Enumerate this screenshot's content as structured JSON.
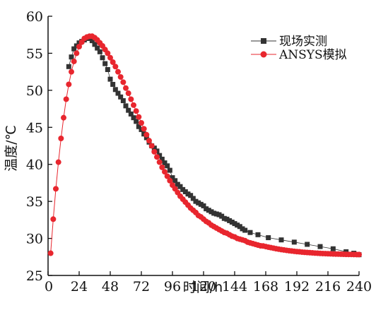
{
  "chart_data": {
    "type": "scatter",
    "xlabel": "时间/h",
    "ylabel": "温度/℃",
    "xlim": [
      0,
      240
    ],
    "ylim": [
      25,
      60
    ],
    "xticks": [
      0,
      24,
      48,
      72,
      96,
      120,
      144,
      168,
      192,
      216,
      240
    ],
    "yticks": [
      25,
      30,
      35,
      40,
      45,
      50,
      55,
      60
    ],
    "legend_position": "top-right",
    "grid": false,
    "series": [
      {
        "name": "现场实测",
        "marker": "square",
        "color": "#333333",
        "x": [
          16,
          18,
          20,
          22,
          24,
          26,
          28,
          30,
          32,
          34,
          36,
          38,
          40,
          42,
          44,
          46,
          48,
          50,
          52,
          54,
          56,
          58,
          60,
          62,
          64,
          66,
          68,
          70,
          72,
          74,
          76,
          78,
          80,
          82,
          84,
          86,
          88,
          90,
          92,
          94,
          96,
          98,
          100,
          102,
          104,
          106,
          108,
          110,
          112,
          114,
          116,
          118,
          120,
          122,
          124,
          126,
          128,
          130,
          132,
          134,
          136,
          138,
          140,
          142,
          144,
          146,
          148,
          150,
          152,
          156,
          162,
          170,
          180,
          190,
          200,
          210,
          220,
          230,
          236,
          240
        ],
        "y": [
          53.2,
          54.5,
          55.6,
          56.0,
          56.4,
          56.6,
          56.8,
          57.0,
          57.0,
          56.7,
          56.2,
          55.7,
          55.2,
          54.4,
          53.6,
          52.8,
          51.5,
          50.8,
          50.1,
          49.6,
          49.1,
          48.6,
          47.9,
          47.3,
          46.8,
          46.3,
          45.8,
          45.1,
          44.7,
          44.1,
          43.6,
          43.0,
          42.5,
          42.2,
          41.8,
          41.2,
          40.7,
          40.2,
          39.8,
          39.2,
          38.2,
          37.8,
          37.3,
          37.0,
          36.6,
          36.3,
          36.0,
          35.8,
          35.4,
          35.0,
          34.8,
          34.6,
          34.4,
          34.0,
          33.8,
          33.6,
          33.4,
          33.3,
          33.2,
          33.0,
          32.7,
          32.6,
          32.4,
          32.2,
          32.0,
          31.8,
          31.6,
          31.3,
          31.1,
          30.8,
          30.5,
          30.1,
          29.8,
          29.5,
          29.2,
          28.9,
          28.6,
          28.2,
          28.0,
          27.8
        ]
      },
      {
        "name": "ANSYS模拟",
        "marker": "circle",
        "color": "#e8262e",
        "x": [
          2,
          4,
          6,
          8,
          10,
          12,
          14,
          16,
          18,
          20,
          22,
          24,
          26,
          28,
          30,
          32,
          34,
          36,
          38,
          40,
          42,
          44,
          46,
          48,
          50,
          52,
          54,
          56,
          58,
          60,
          62,
          64,
          66,
          68,
          70,
          72,
          74,
          76,
          78,
          80,
          82,
          84,
          86,
          88,
          90,
          92,
          94,
          96,
          98,
          100,
          102,
          104,
          106,
          108,
          110,
          112,
          114,
          116,
          118,
          120,
          122,
          124,
          126,
          128,
          130,
          132,
          134,
          136,
          138,
          140,
          142,
          144,
          146,
          148,
          150,
          152,
          154,
          156,
          158,
          160,
          162,
          164,
          166,
          168,
          170,
          172,
          174,
          176,
          178,
          180,
          182,
          184,
          186,
          188,
          190,
          192,
          194,
          196,
          198,
          200,
          202,
          204,
          206,
          208,
          210,
          212,
          214,
          216,
          218,
          220,
          222,
          224,
          226,
          228,
          230,
          232,
          234,
          236,
          238,
          240
        ],
        "y": [
          28.0,
          32.6,
          36.7,
          40.3,
          43.5,
          46.3,
          48.8,
          50.8,
          52.5,
          53.9,
          55.0,
          55.9,
          56.5,
          57.0,
          57.2,
          57.3,
          57.3,
          57.1,
          56.8,
          56.4,
          56.0,
          55.5,
          55.0,
          54.4,
          53.8,
          53.2,
          52.5,
          51.8,
          51.1,
          50.3,
          49.6,
          48.8,
          48.0,
          47.2,
          46.4,
          45.6,
          44.8,
          44.0,
          43.2,
          42.5,
          41.7,
          41.0,
          40.3,
          39.6,
          39.0,
          38.4,
          37.8,
          37.2,
          36.7,
          36.2,
          35.7,
          35.3,
          34.9,
          34.5,
          34.1,
          33.8,
          33.5,
          33.1,
          32.9,
          32.6,
          32.3,
          32.1,
          31.8,
          31.6,
          31.4,
          31.2,
          31.0,
          30.8,
          30.7,
          30.5,
          30.3,
          30.2,
          30.0,
          29.9,
          29.8,
          29.7,
          29.5,
          29.4,
          29.3,
          29.2,
          29.1,
          29.0,
          28.98,
          28.9,
          28.82,
          28.75,
          28.68,
          28.61,
          28.55,
          28.49,
          28.44,
          28.39,
          28.34,
          28.3,
          28.26,
          28.22,
          28.19,
          28.15,
          28.12,
          28.1,
          28.07,
          28.05,
          28.02,
          28.0,
          27.98,
          27.96,
          27.95,
          27.93,
          27.92,
          27.9,
          27.89,
          27.88,
          27.87,
          27.86,
          27.85,
          27.84,
          27.84,
          27.83,
          27.82,
          27.82
        ]
      }
    ]
  }
}
